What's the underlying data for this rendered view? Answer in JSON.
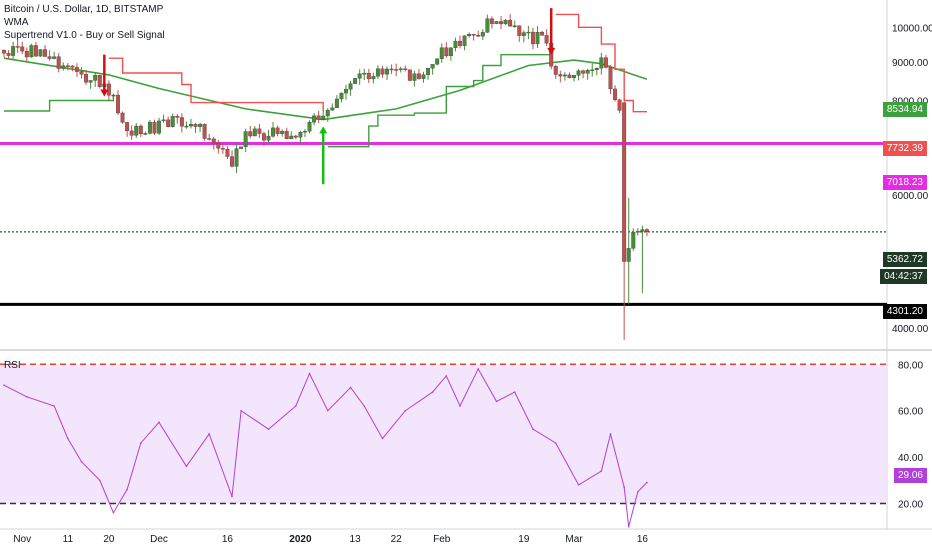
{
  "header": {
    "title": "Bitcoin / U.S. Dollar, 1D, BITSTAMP",
    "wma_label": "WMA",
    "supertrend_label": "Supertrend V1.0 - Buy or Sell Signal",
    "rsi_label": "RSI"
  },
  "price_badges": {
    "wma": "8534.94",
    "supertrend": "7732.39",
    "pink_line": "7018.23",
    "last_price": "5362.72",
    "countdown": "04:42:37",
    "black_line": "4301.20",
    "rsi": "29.06"
  },
  "colors": {
    "up": "#4a8a3a",
    "down": "#c0504d",
    "wma": "#3ca03c",
    "supertrend_down": "#f05050",
    "supertrend_up": "#3ca03c",
    "pink": "#e62ae6",
    "rsi_line": "#b040d8",
    "rsi_band": "#f3e5fb"
  },
  "chart_data": [
    {
      "type": "candlestick",
      "title": "Bitcoin / U.S. Dollar, 1D, BITSTAMP",
      "x_tick_labels": [
        "Nov",
        "11",
        "20",
        "Dec",
        "16",
        "2020",
        "13",
        "22",
        "Feb",
        "19",
        "Mar",
        "16"
      ],
      "y_tick_labels": [
        "10000.00",
        "9000.00",
        "8000.00",
        "6000.00",
        "4000.00"
      ],
      "y_scale": "log",
      "ylim": [
        3800,
        10800
      ],
      "horizontal_lines": [
        {
          "name": "pink",
          "value": 7018.23
        },
        {
          "name": "black",
          "value": 4301.2
        },
        {
          "name": "last_price",
          "value": 5362.72
        }
      ],
      "wma_last": 8534.94,
      "supertrend_last": 7732.39,
      "signals": [
        {
          "type": "sell",
          "date": "Nov 19"
        },
        {
          "type": "buy",
          "date": "Jan 6"
        },
        {
          "type": "sell",
          "date": "Feb 25"
        }
      ],
      "price_path_dates": [
        "Oct 28",
        "Nov 5",
        "Nov 11",
        "Nov 18",
        "Nov 21",
        "Nov 25",
        "Dec 1",
        "Dec 8",
        "Dec 17",
        "Dec 20",
        "Dec 31",
        "Jan 6",
        "Jan 13",
        "Jan 18",
        "Jan 26",
        "Feb 1",
        "Feb 9",
        "Feb 13",
        "Feb 17",
        "Feb 23",
        "Feb 26",
        "Mar 1",
        "Mar 7",
        "Mar 11",
        "Mar 12",
        "Mar 14",
        "Mar 17"
      ],
      "price_path_closes": [
        9300,
        9300,
        8800,
        8500,
        8000,
        7250,
        7400,
        7550,
        6650,
        7200,
        7200,
        7750,
        8500,
        8800,
        8600,
        9300,
        9900,
        10350,
        9850,
        9650,
        8800,
        8600,
        9000,
        7800,
        4900,
        5400,
        5362.72
      ]
    },
    {
      "type": "line",
      "title": "RSI",
      "y_tick_labels": [
        "80.00",
        "60.00",
        "40.00",
        "20.00"
      ],
      "ylim": [
        12,
        84
      ],
      "bands": [
        20,
        80
      ],
      "dates": [
        "Oct 28",
        "Nov 2",
        "Nov 8",
        "Nov 11",
        "Nov 14",
        "Nov 18",
        "Nov 21",
        "Nov 24",
        "Nov 27",
        "Dec 1",
        "Dec 7",
        "Dec 12",
        "Dec 17",
        "Dec 19",
        "Dec 25",
        "Dec 31",
        "Jan 3",
        "Jan 7",
        "Jan 12",
        "Jan 15",
        "Jan 19",
        "Jan 24",
        "Jan 30",
        "Feb 2",
        "Feb 5",
        "Feb 9",
        "Feb 13",
        "Feb 17",
        "Feb 21",
        "Feb 26",
        "Mar 2",
        "Mar 7",
        "Mar 9",
        "Mar 12",
        "Mar 13",
        "Mar 15",
        "Mar 17"
      ],
      "values": [
        71,
        66,
        62,
        48,
        38,
        30,
        16,
        26,
        46,
        55,
        36,
        50,
        23,
        60,
        52,
        62,
        76,
        60,
        70,
        62,
        48,
        60,
        68,
        75,
        62,
        78,
        64,
        68,
        52,
        46,
        28,
        34,
        50,
        27,
        10,
        25,
        29.06
      ]
    }
  ]
}
